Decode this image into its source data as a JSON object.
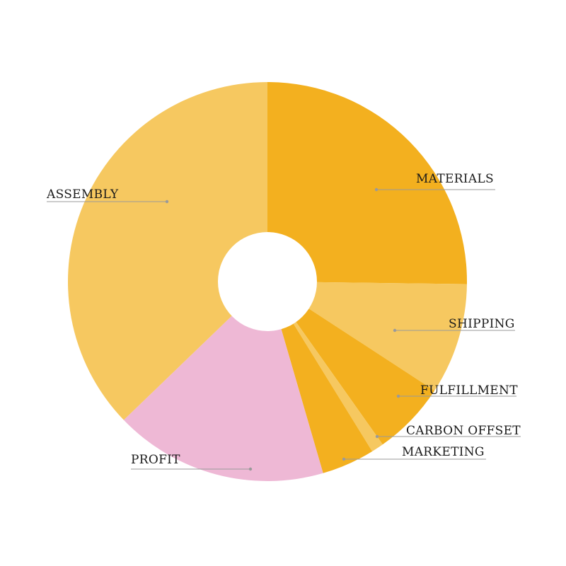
{
  "chart_data": {
    "type": "pie",
    "donut": true,
    "title": "",
    "slices": [
      {
        "label": "MATERIALS",
        "value": 25.2,
        "color": "#F3B01F"
      },
      {
        "label": "SHIPPING",
        "value": 9.0,
        "color": "#F6C860"
      },
      {
        "label": "FULFILLMENT",
        "value": 6.0,
        "color": "#F3B01F"
      },
      {
        "label": "CARBON OFFSET",
        "value": 1.0,
        "color": "#F6C860"
      },
      {
        "label": "MARKETING",
        "value": 4.3,
        "color": "#F3B01F"
      },
      {
        "label": "PROFIT",
        "value": 17.3,
        "color": "#EEB8D5"
      },
      {
        "label": "ASSEMBLY",
        "value": 37.2,
        "color": "#F6C860"
      }
    ],
    "legend": "none",
    "labels": "outside-with-leader-lines"
  }
}
